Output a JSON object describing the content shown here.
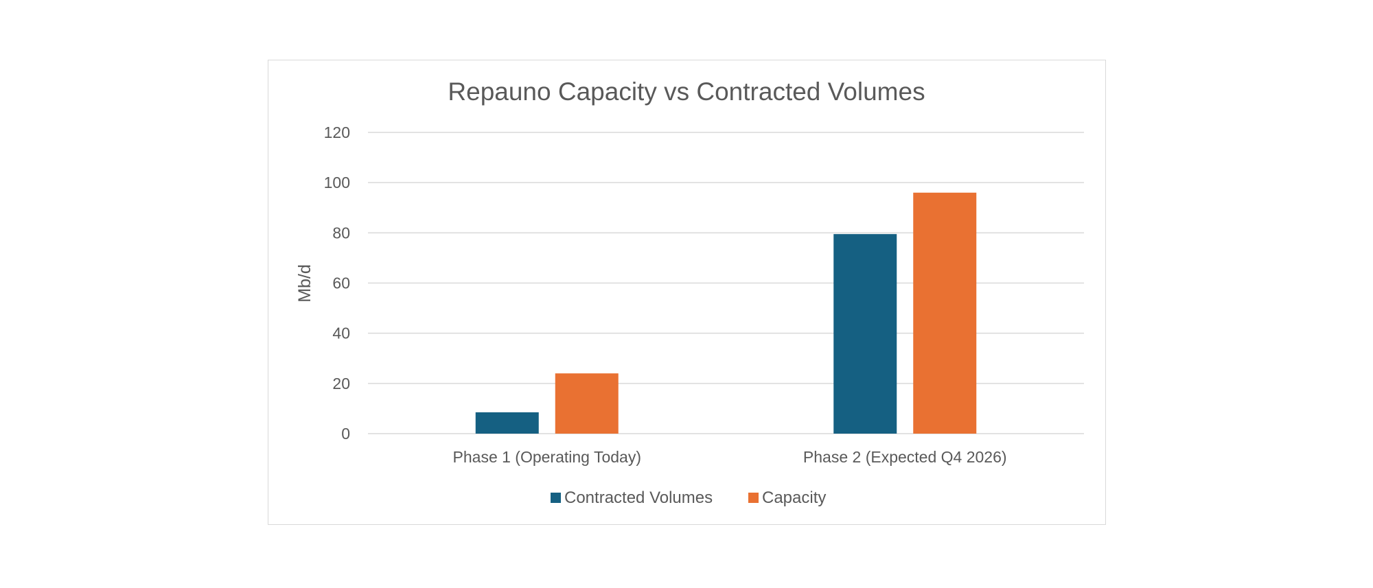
{
  "chart_data": {
    "type": "bar",
    "title": "Repauno Capacity vs Contracted Volumes",
    "xlabel": "",
    "ylabel": "Mb/d",
    "ylim": [
      0,
      120
    ],
    "yticks": [
      0,
      20,
      40,
      60,
      80,
      100,
      120
    ],
    "categories": [
      "Phase 1 (Operating Today)",
      "Phase 2 (Expected Q4 2026)"
    ],
    "series": [
      {
        "name": "Contracted Volumes",
        "values": [
          8.5,
          79.5
        ],
        "color": "#156082"
      },
      {
        "name": "Capacity",
        "values": [
          24,
          96
        ],
        "color": "#E97132"
      }
    ],
    "grid": true,
    "legend": "bottom",
    "colors": {
      "grid": "#d9d9d9",
      "text": "#595959",
      "border": "#d9d9d9"
    }
  }
}
